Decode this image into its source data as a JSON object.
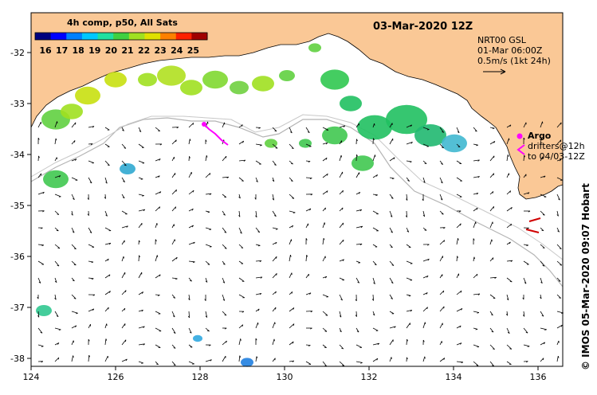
{
  "title": "03-Mar-2020 12Z",
  "colorbar": {
    "label": "4h comp, p50, All Sats",
    "ticks": [
      "16",
      "17",
      "18",
      "19",
      "20",
      "21",
      "22",
      "23",
      "24",
      "25"
    ],
    "colors": [
      "#00007f",
      "#0000ff",
      "#0080ff",
      "#00c8ff",
      "#20e0a0",
      "#40d040",
      "#a0e020",
      "#e0e000",
      "#ff8000",
      "#ff2000",
      "#a00000"
    ]
  },
  "current_info": {
    "line1": "NRT00 GSL",
    "line2": "01-Mar 06:00Z",
    "line3": "0.5m/s (1kt 24h)"
  },
  "argo": {
    "label": "Argo",
    "drifters": "drifters@12h",
    "to": "to 04/03-12Z",
    "color": "#ff00ff"
  },
  "credit": "© IMOS 05-Mar-2020 09:07 Hobart",
  "axes": {
    "x_ticks": [
      "124",
      "126",
      "128",
      "130",
      "132",
      "134",
      "136"
    ],
    "y_ticks": [
      "-32",
      "-33",
      "-34",
      "-35",
      "-36",
      "-37",
      "-38"
    ]
  },
  "colors": {
    "land": "#fac896",
    "ocean": "#ffffff",
    "shelf": "#b4b4b4"
  }
}
